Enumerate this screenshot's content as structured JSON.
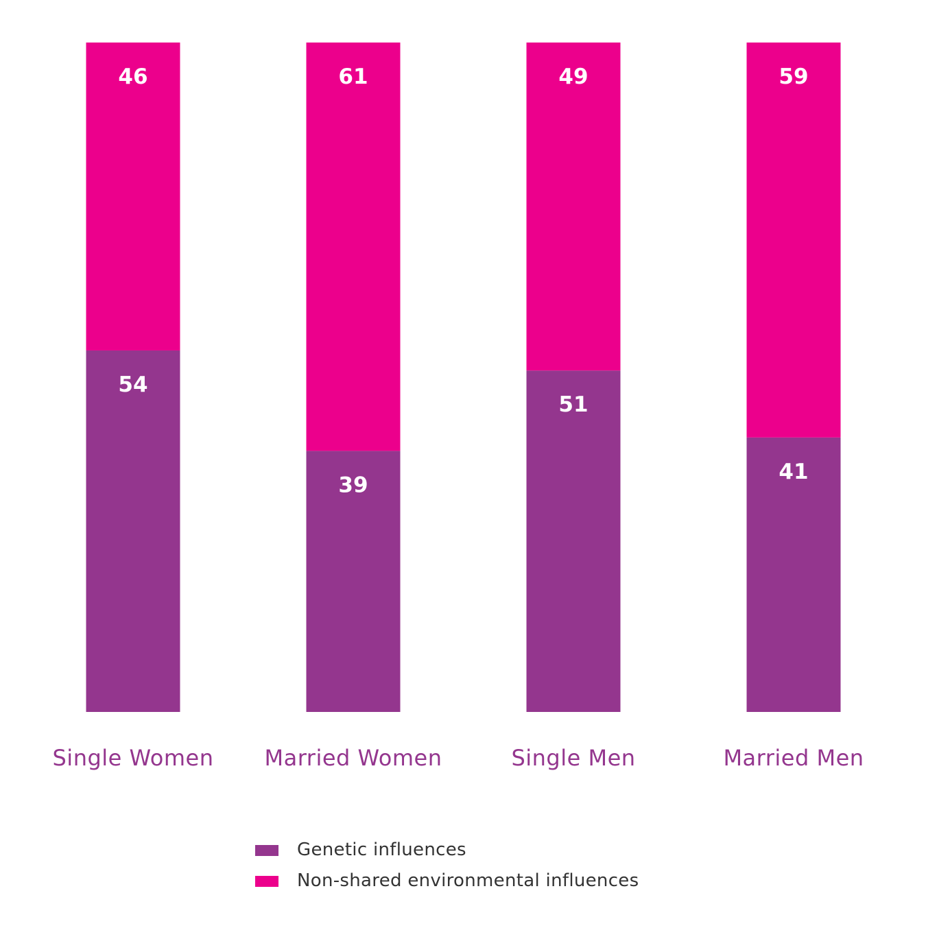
{
  "chart_data": {
    "type": "bar",
    "stacked": true,
    "categories": [
      "Single Women",
      "Married Women",
      "Single Men",
      "Married Men"
    ],
    "series": [
      {
        "name": "Genetic influences",
        "values": [
          54,
          39,
          51,
          41
        ],
        "color": "#94368E"
      },
      {
        "name": "Non-shared environmental influences",
        "values": [
          46,
          61,
          49,
          59
        ],
        "color": "#EC008C"
      }
    ],
    "ylim": [
      0,
      100
    ],
    "grid": false,
    "legend_position": "bottom-center",
    "label_color": "#94368E",
    "data_label_color": "#ffffff"
  },
  "legend": [
    {
      "label": "Genetic influences",
      "color": "#94368E"
    },
    {
      "label": "Non-shared environmental influences",
      "color": "#EC008C"
    }
  ]
}
